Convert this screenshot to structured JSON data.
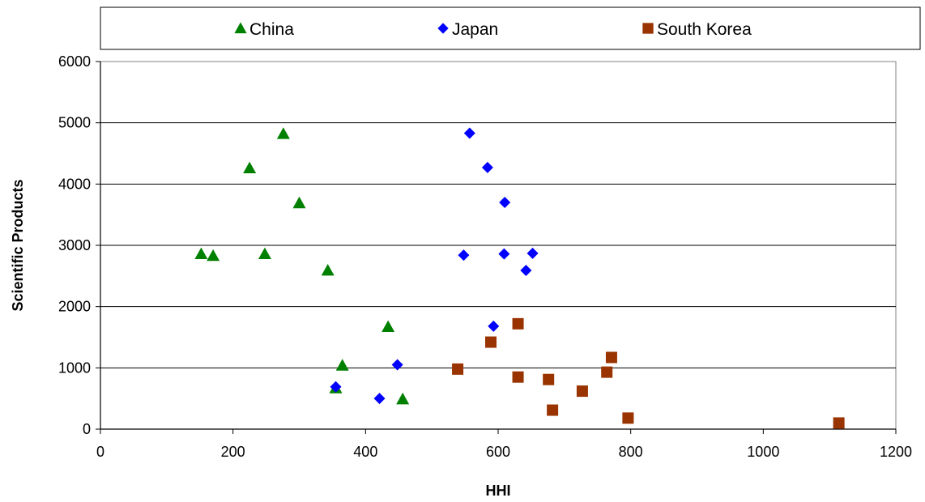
{
  "chart_data": {
    "type": "scatter",
    "title": "",
    "xlabel": "HHI",
    "ylabel": "Scientific Products",
    "xlim": [
      0,
      1200
    ],
    "ylim": [
      0,
      6000
    ],
    "xticks": [
      0,
      200,
      400,
      600,
      800,
      1000,
      1200
    ],
    "yticks": [
      0,
      1000,
      2000,
      3000,
      4000,
      5000,
      6000
    ],
    "grid": "horizontal",
    "legend_position": "top",
    "series": [
      {
        "name": "China",
        "marker": "triangle",
        "color": "#008000",
        "points": [
          {
            "x": 152,
            "y": 2860
          },
          {
            "x": 170,
            "y": 2830
          },
          {
            "x": 225,
            "y": 4260
          },
          {
            "x": 248,
            "y": 2860
          },
          {
            "x": 276,
            "y": 4820
          },
          {
            "x": 300,
            "y": 3690
          },
          {
            "x": 343,
            "y": 2590
          },
          {
            "x": 355,
            "y": 670
          },
          {
            "x": 365,
            "y": 1040
          },
          {
            "x": 434,
            "y": 1670
          },
          {
            "x": 456,
            "y": 490
          }
        ]
      },
      {
        "name": "Japan",
        "marker": "diamond",
        "color": "#0000ff",
        "points": [
          {
            "x": 355,
            "y": 690
          },
          {
            "x": 421,
            "y": 500
          },
          {
            "x": 448,
            "y": 1050
          },
          {
            "x": 548,
            "y": 2840
          },
          {
            "x": 557,
            "y": 4830
          },
          {
            "x": 584,
            "y": 4270
          },
          {
            "x": 593,
            "y": 1680
          },
          {
            "x": 609,
            "y": 2860
          },
          {
            "x": 610,
            "y": 3700
          },
          {
            "x": 642,
            "y": 2590
          },
          {
            "x": 652,
            "y": 2870
          }
        ]
      },
      {
        "name": "South Korea",
        "marker": "square",
        "color": "#993300",
        "points": [
          {
            "x": 539,
            "y": 980
          },
          {
            "x": 589,
            "y": 1420
          },
          {
            "x": 630,
            "y": 1720
          },
          {
            "x": 630,
            "y": 850
          },
          {
            "x": 676,
            "y": 810
          },
          {
            "x": 682,
            "y": 310
          },
          {
            "x": 727,
            "y": 620
          },
          {
            "x": 764,
            "y": 930
          },
          {
            "x": 771,
            "y": 1170
          },
          {
            "x": 796,
            "y": 180
          },
          {
            "x": 1114,
            "y": 100
          }
        ]
      }
    ]
  }
}
